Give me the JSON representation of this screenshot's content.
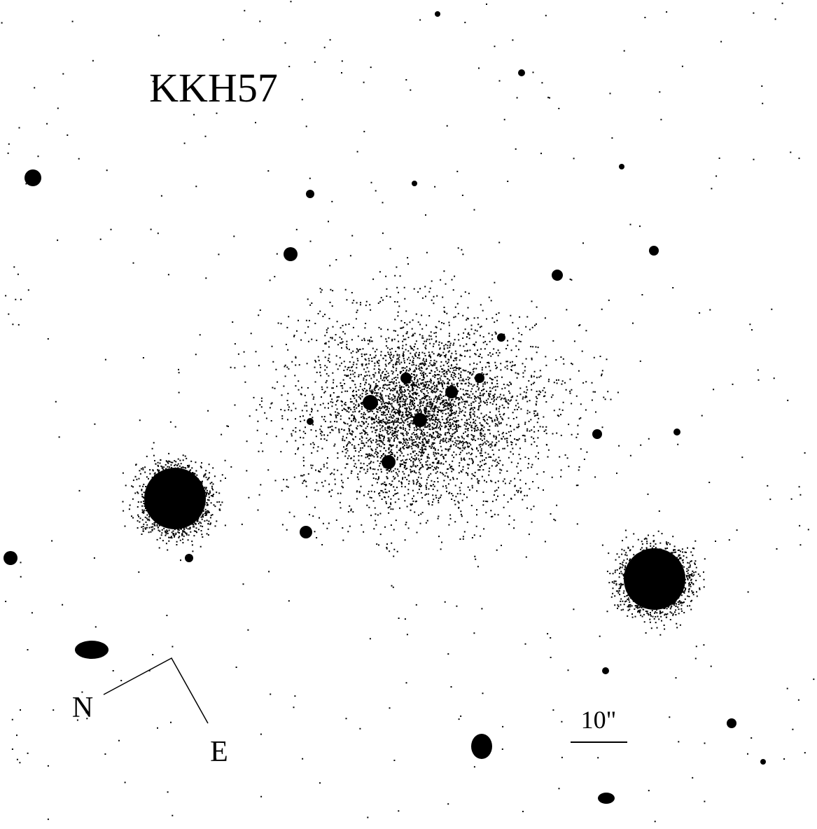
{
  "title": "KKH57",
  "compass": {
    "north": "N",
    "east": "E"
  },
  "scale_bar": {
    "label": "10\""
  }
}
